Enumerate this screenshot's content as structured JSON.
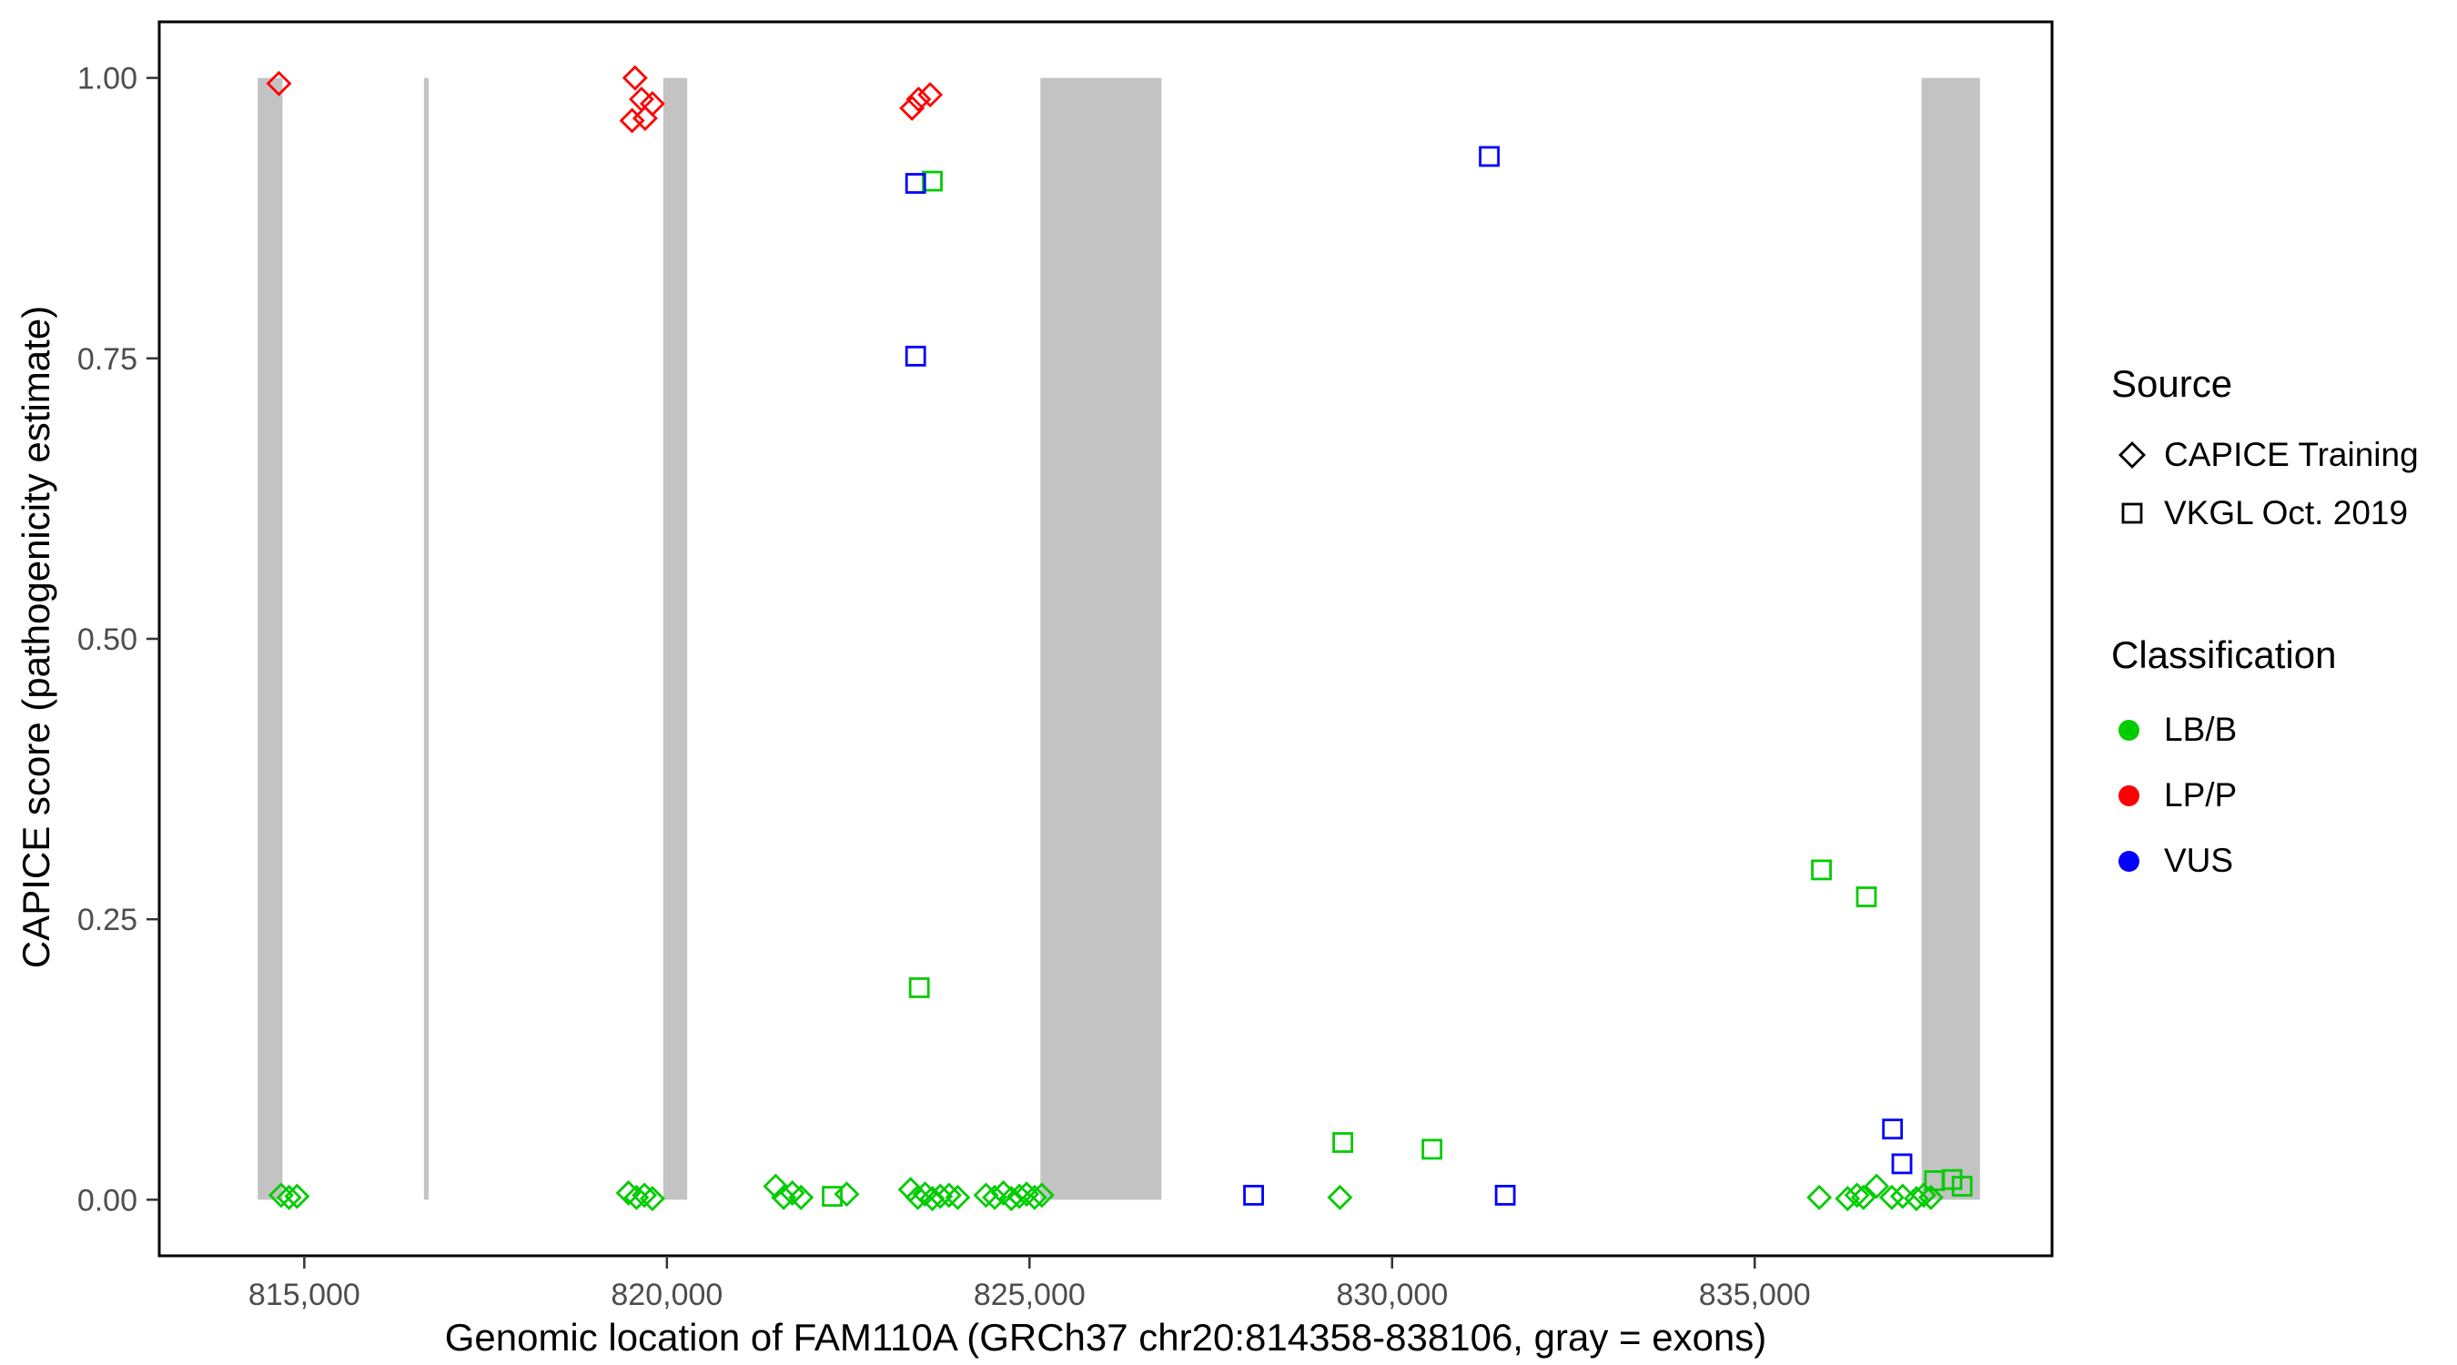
{
  "chart_data": {
    "type": "scatter",
    "title": "",
    "xlabel": "Genomic location of FAM110A (GRCh37 chr20:814358-838106, gray = exons)",
    "ylabel": "CAPICE score (pathogenicity estimate)",
    "xlim": [
      813000,
      839100
    ],
    "ylim": [
      -0.05,
      1.05
    ],
    "x_ticks": [
      815000,
      820000,
      825000,
      830000,
      835000
    ],
    "x_tick_labels": [
      "815,000",
      "820,000",
      "825,000",
      "830,000",
      "835,000"
    ],
    "y_ticks": [
      0,
      0.25,
      0.5,
      0.75,
      1.0
    ],
    "y_tick_labels": [
      "0.00",
      "0.25",
      "0.50",
      "0.75",
      "1.00"
    ],
    "grid": false,
    "exon_color": "#C3C3C3",
    "exons": [
      [
        814358,
        814700
      ],
      [
        816650,
        816715
      ],
      [
        819950,
        820280
      ],
      [
        825150,
        826820
      ],
      [
        837300,
        838106
      ]
    ],
    "series": [
      {
        "name": "LP/P (CAPICE Training)",
        "source": "CAPICE Training",
        "classification": "LP/P",
        "marker": "diamond",
        "color": "#FF0000",
        "points": [
          [
            814650,
            0.995
          ],
          [
            819560,
            1.0
          ],
          [
            819650,
            0.981
          ],
          [
            819800,
            0.977
          ],
          [
            819520,
            0.962
          ],
          [
            819700,
            0.964
          ],
          [
            823470,
            0.981
          ],
          [
            823630,
            0.985
          ],
          [
            823380,
            0.973
          ]
        ]
      },
      {
        "name": "LB/B (CAPICE Training)",
        "source": "CAPICE Training",
        "classification": "LB/B",
        "marker": "diamond",
        "color": "#00CC00",
        "points": [
          [
            814680,
            0.004
          ],
          [
            814790,
            0.002
          ],
          [
            814900,
            0.003
          ],
          [
            819470,
            0.006
          ],
          [
            819580,
            0.002
          ],
          [
            819690,
            0.004
          ],
          [
            819800,
            0.001
          ],
          [
            821500,
            0.012
          ],
          [
            821610,
            0.002
          ],
          [
            821730,
            0.006
          ],
          [
            821850,
            0.002
          ],
          [
            822480,
            0.005
          ],
          [
            823360,
            0.009
          ],
          [
            823460,
            0.002
          ],
          [
            823560,
            0.005
          ],
          [
            823660,
            0.001
          ],
          [
            823770,
            0.003
          ],
          [
            823890,
            0.004
          ],
          [
            824010,
            0.002
          ],
          [
            824400,
            0.004
          ],
          [
            824520,
            0.002
          ],
          [
            824640,
            0.006
          ],
          [
            824750,
            0.001
          ],
          [
            824860,
            0.003
          ],
          [
            824960,
            0.005
          ],
          [
            825070,
            0.002
          ],
          [
            825170,
            0.004
          ],
          [
            829280,
            0.002
          ],
          [
            835890,
            0.002
          ],
          [
            836280,
            0.001
          ],
          [
            836410,
            0.004
          ],
          [
            836500,
            0.002
          ],
          [
            836680,
            0.012
          ],
          [
            836890,
            0.002
          ],
          [
            837040,
            0.003
          ],
          [
            837230,
            0.001
          ],
          [
            837330,
            0.004
          ],
          [
            837430,
            0.002
          ]
        ]
      },
      {
        "name": "LB/B (VKGL Oct. 2019)",
        "source": "VKGL Oct. 2019",
        "classification": "LB/B",
        "marker": "square",
        "color": "#00CC00",
        "points": [
          [
            823660,
            0.908
          ],
          [
            823480,
            0.189
          ],
          [
            829320,
            0.051
          ],
          [
            830550,
            0.045
          ],
          [
            835920,
            0.294
          ],
          [
            836540,
            0.27
          ],
          [
            822280,
            0.003
          ],
          [
            837480,
            0.017
          ],
          [
            837720,
            0.018
          ],
          [
            837860,
            0.012
          ]
        ]
      },
      {
        "name": "VUS (VKGL Oct. 2019)",
        "source": "VKGL Oct. 2019",
        "classification": "VUS",
        "marker": "square",
        "color": "#0000FF",
        "points": [
          [
            823430,
            0.906
          ],
          [
            823430,
            0.752
          ],
          [
            831340,
            0.93
          ],
          [
            828090,
            0.004
          ],
          [
            831560,
            0.004
          ],
          [
            836900,
            0.063
          ],
          [
            837030,
            0.032
          ]
        ]
      }
    ]
  },
  "legend": {
    "source": {
      "title": "Source",
      "items": [
        {
          "label": "CAPICE Training",
          "marker": "diamond"
        },
        {
          "label": "VKGL Oct. 2019",
          "marker": "square"
        }
      ]
    },
    "classification": {
      "title": "Classification",
      "items": [
        {
          "label": "LB/B",
          "color": "#00CC00"
        },
        {
          "label": "LP/P",
          "color": "#FF0000"
        },
        {
          "label": "VUS",
          "color": "#0000FF"
        }
      ]
    }
  }
}
